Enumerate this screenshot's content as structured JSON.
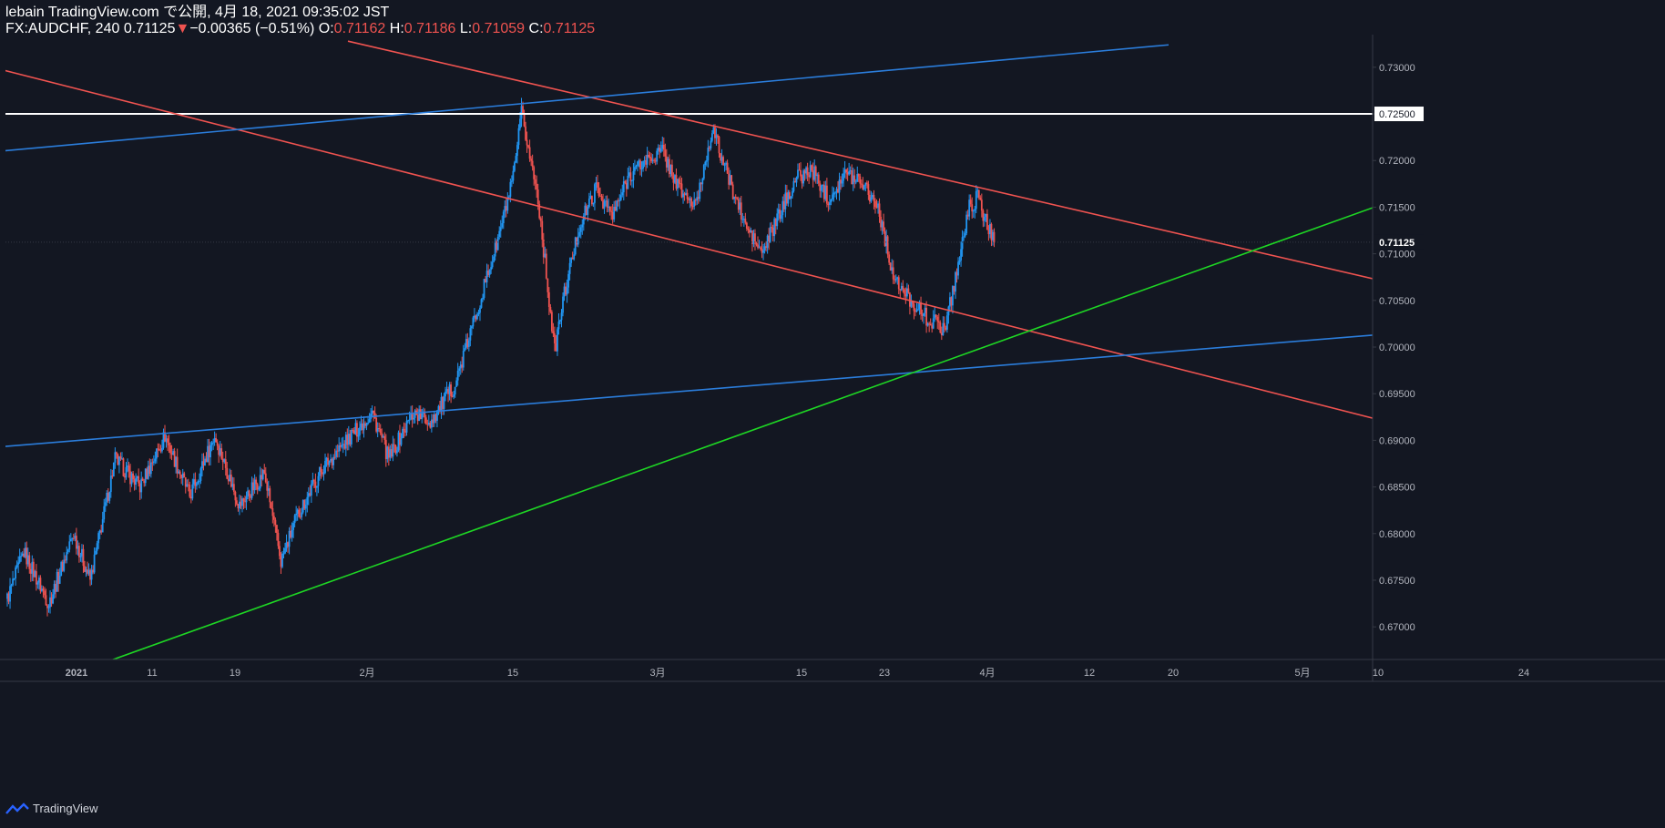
{
  "header": {
    "line1": "lebain TradingView.com で公開, 4月 18, 2021 09:35:02 JST",
    "symbol": "FX:AUDCHF, 240",
    "last": "0.71125",
    "arrow": "▼",
    "change": "−0.00365 (−0.51%)",
    "o_label": "O:",
    "o": "0.71162",
    "h_label": "H:",
    "h": "0.71186",
    "l_label": "L:",
    "l": "0.71059",
    "c_label": "C:",
    "c": "0.71125"
  },
  "footer": {
    "brand": "TradingView"
  },
  "colors": {
    "background": "#131722",
    "up": "#2196f3",
    "down": "#ef5350",
    "trend_red": "#ef5350",
    "trend_blue": "#2b7ddb",
    "trend_green": "#1ed624",
    "level": "#ffffff"
  },
  "chart_data": {
    "type": "candlestick",
    "x_ticks": [
      "2021",
      "11",
      "19",
      "2月",
      "15",
      "3月",
      "15",
      "23",
      "4月",
      "12",
      "20",
      "5月",
      "10",
      "24"
    ],
    "y_ticks": [
      "0.73000",
      "0.72500",
      "0.72000",
      "0.71500",
      "0.71000",
      "0.70500",
      "0.70000",
      "0.69500",
      "0.69000",
      "0.68500",
      "0.68000",
      "0.67500",
      "0.67000"
    ],
    "ylim": [
      0.6665,
      0.7335
    ],
    "current_price": "0.71125",
    "level_label": "0.72500",
    "horizontal_level": 0.725,
    "price_path": [
      [
        0,
        0.673
      ],
      [
        2,
        0.678
      ],
      [
        5,
        0.6725
      ],
      [
        8,
        0.68
      ],
      [
        10,
        0.675
      ],
      [
        13,
        0.688
      ],
      [
        16,
        0.685
      ],
      [
        19,
        0.6905
      ],
      [
        22,
        0.684
      ],
      [
        25,
        0.6905
      ],
      [
        28,
        0.683
      ],
      [
        31,
        0.6865
      ],
      [
        33,
        0.677
      ],
      [
        35,
        0.682
      ],
      [
        38,
        0.687
      ],
      [
        41,
        0.69
      ],
      [
        44,
        0.693
      ],
      [
        46,
        0.688
      ],
      [
        49,
        0.693
      ],
      [
        51,
        0.692
      ],
      [
        54,
        0.696
      ],
      [
        57,
        0.705
      ],
      [
        59,
        0.711
      ],
      [
        61,
        0.718
      ],
      [
        62,
        0.725
      ],
      [
        64,
        0.716
      ],
      [
        66,
        0.6995
      ],
      [
        67,
        0.705
      ],
      [
        69,
        0.713
      ],
      [
        71,
        0.717
      ],
      [
        73,
        0.714
      ],
      [
        75,
        0.7185
      ],
      [
        77,
        0.72
      ],
      [
        79,
        0.721
      ],
      [
        81,
        0.717
      ],
      [
        83,
        0.715
      ],
      [
        85,
        0.7235
      ],
      [
        87,
        0.718
      ],
      [
        89,
        0.713
      ],
      [
        91,
        0.71
      ],
      [
        93,
        0.714
      ],
      [
        95,
        0.718
      ],
      [
        97,
        0.719
      ],
      [
        99,
        0.716
      ],
      [
        101,
        0.7185
      ],
      [
        103,
        0.718
      ],
      [
        105,
        0.715
      ],
      [
        107,
        0.707
      ],
      [
        109,
        0.705
      ],
      [
        111,
        0.703
      ],
      [
        113,
        0.702
      ],
      [
        114,
        0.706
      ],
      [
        116,
        0.715
      ],
      [
        117,
        0.716
      ],
      [
        118,
        0.7135
      ],
      [
        119,
        0.71125
      ]
    ],
    "trendlines": [
      {
        "color": "trend_red",
        "p1": [
          -1,
          0.7298
        ],
        "p2": [
          190,
          0.6895
        ]
      },
      {
        "color": "trend_red",
        "p1": [
          44,
          0.7328
        ],
        "p2": [
          190,
          0.7047
        ]
      },
      {
        "color": "trend_blue",
        "p1": [
          -1,
          0.721
        ],
        "p2": [
          150,
          0.7324
        ]
      },
      {
        "color": "trend_blue",
        "p1": [
          -1,
          0.6893
        ],
        "p2": [
          190,
          0.7022
        ]
      },
      {
        "color": "trend_green",
        "p1": [
          12,
          0.666
        ],
        "p2": [
          190,
          0.719
        ]
      }
    ]
  }
}
